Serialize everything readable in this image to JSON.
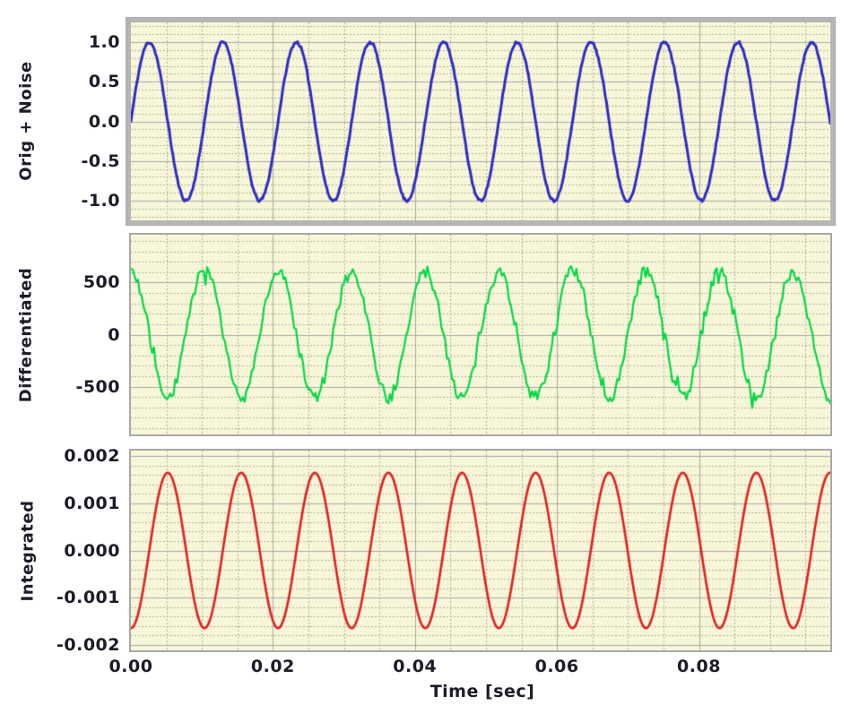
{
  "figure": {
    "x_axis": {
      "label": "Time [sec]",
      "xlim": [
        0,
        0.0985
      ],
      "major_step": 0.02,
      "minor_step": 0.005,
      "ticks": [
        {
          "value": 0.0,
          "label": "0.00"
        },
        {
          "value": 0.02,
          "label": "0.02"
        },
        {
          "value": 0.04,
          "label": "0.04"
        },
        {
          "value": 0.06,
          "label": "0.06"
        },
        {
          "value": 0.08,
          "label": "0.08"
        }
      ]
    },
    "grid": {
      "major_on": true,
      "minor_on": true,
      "minor_style": "dotted"
    }
  },
  "colors": {
    "page_bg": "#ffffff",
    "plot_bg": "#f8f6d8",
    "grid_major": "#a8a8a8",
    "grid_minor": "#b3b194",
    "frame_selected": "#b5b5b5",
    "frame": "#a8a8a8",
    "text": "#1c1c28",
    "trace_orig": "#2d2dc4",
    "trace_diff": "#00d944",
    "trace_integ": "#df2121"
  },
  "chart_data": [
    {
      "type": "line",
      "ylabel": "Orig + Noise",
      "ylim": [
        -1.25,
        1.25
      ],
      "y_major_step": 0.5,
      "y_minor_step": 0.1,
      "y_ticks": [
        {
          "value": 1.0,
          "label": "1.0"
        },
        {
          "value": 0.5,
          "label": "0.5"
        },
        {
          "value": 0.0,
          "label": "0.0"
        },
        {
          "value": -0.5,
          "label": "-0.5"
        },
        {
          "value": -1.0,
          "label": "-1.0"
        }
      ],
      "series": [
        {
          "name": "Orig + Noise",
          "waveform": "sin",
          "amplitude": 1.0,
          "frequency_hz": 96.5,
          "noise_amplitude": 0.018,
          "color": "#2d2dc4",
          "line_width": 3
        }
      ]
    },
    {
      "type": "line",
      "ylabel": "Differentiated",
      "ylim": [
        -960,
        960
      ],
      "y_major_step": 500,
      "y_minor_step": 100,
      "y_ticks": [
        {
          "value": 500,
          "label": "500"
        },
        {
          "value": 0,
          "label": "0"
        },
        {
          "value": -500,
          "label": "-500"
        }
      ],
      "series": [
        {
          "name": "Differentiated",
          "waveform": "cos",
          "amplitude": 606,
          "frequency_hz": 96.5,
          "noise_amplitude": 65,
          "noise_spike_amplitude": 95,
          "noise_spike_probability": 0.12,
          "sample_rate_hz": 4000,
          "color": "#00d944",
          "line_width": 2.2
        }
      ]
    },
    {
      "type": "line",
      "ylabel": "Integrated",
      "ylim": [
        -0.00212,
        0.00212
      ],
      "y_major_step": 0.001,
      "y_minor_step": 0.0002,
      "y_ticks": [
        {
          "value": 0.002,
          "label": "0.002"
        },
        {
          "value": 0.001,
          "label": "0.001"
        },
        {
          "value": 0.0,
          "label": "0.000"
        },
        {
          "value": -0.001,
          "label": "-0.001"
        },
        {
          "value": -0.002,
          "label": "-0.002"
        }
      ],
      "series": [
        {
          "name": "Integrated",
          "waveform": "negcos",
          "amplitude": 0.00165,
          "frequency_hz": 96.5,
          "noise_amplitude": 0,
          "color": "#df2121",
          "line_width": 2.6
        }
      ]
    }
  ]
}
